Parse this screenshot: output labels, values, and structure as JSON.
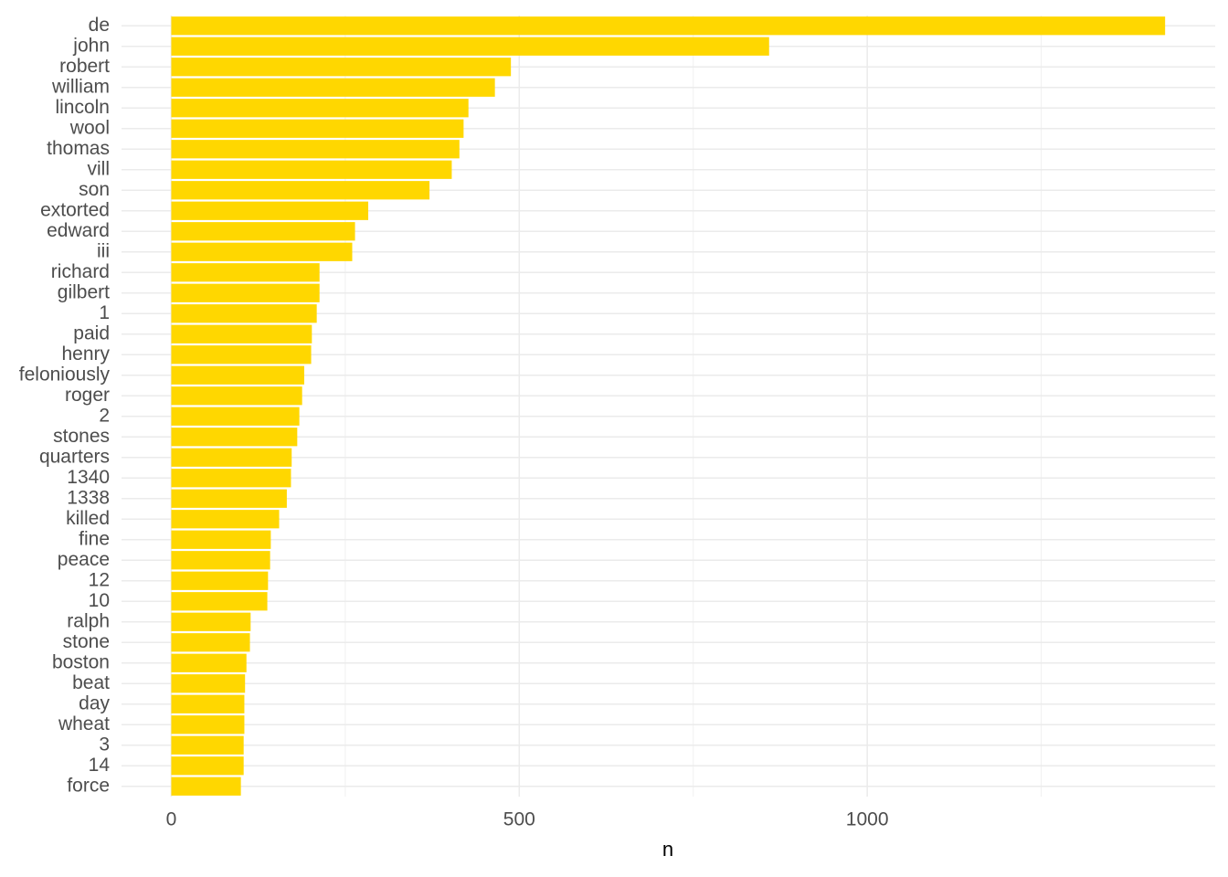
{
  "chart_data": {
    "type": "barh",
    "x_label": "n",
    "categories": [
      "de",
      "john",
      "robert",
      "william",
      "lincoln",
      "wool",
      "thomas",
      "vill",
      "son",
      "extorted",
      "edward",
      "iii",
      "richard",
      "gilbert",
      "1",
      "paid",
      "henry",
      "feloniously",
      "roger",
      "2",
      "stones",
      "quarters",
      "1340",
      "1338",
      "killed",
      "fine",
      "peace",
      "12",
      "10",
      "ralph",
      "stone",
      "boston",
      "beat",
      "day",
      "wheat",
      "3",
      "14",
      "force"
    ],
    "values": [
      1428,
      859,
      488,
      465,
      427,
      420,
      414,
      403,
      371,
      283,
      264,
      260,
      213,
      213,
      209,
      202,
      201,
      191,
      188,
      184,
      181,
      173,
      172,
      166,
      155,
      143,
      142,
      139,
      138,
      114,
      113,
      108,
      106,
      105,
      105,
      104,
      104,
      100
    ],
    "color": "#ffd700",
    "xlim": [
      -71.5,
      1500
    ],
    "xticks": [
      0,
      500,
      1000
    ],
    "x_minor_ticks": [
      250,
      750,
      1250
    ],
    "grid": true
  }
}
